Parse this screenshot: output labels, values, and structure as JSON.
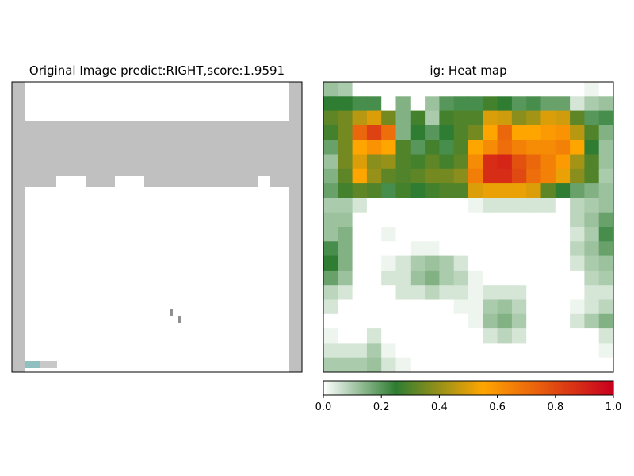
{
  "chart_data": [
    {
      "type": "image",
      "title": "Original Image predict:RIGHT,score:1.9591",
      "cols": 20,
      "rows": 20,
      "note_colors": {
        "background": "#ffffff",
        "wall": "#c0c0c0",
        "brick_gap": "#ffffff",
        "paddle_left": "#8fbfbf",
        "paddle_right": "#c8c8c8",
        "ball": "#8f8f8f"
      }
    },
    {
      "type": "heatmap",
      "title": "ig: Heat map",
      "cols": 20,
      "rows": 20,
      "colormap": [
        "#ffffff",
        "#2e7d32",
        "#ffa500",
        "#c8001e"
      ],
      "colormap_stops": [
        0,
        0.25,
        0.55,
        1.0
      ],
      "values": [
        [
          0.12,
          0.1,
          0.0,
          0.0,
          0.0,
          0.0,
          0.0,
          0.0,
          0.0,
          0.0,
          0.0,
          0.0,
          0.0,
          0.0,
          0.0,
          0.0,
          0.0,
          0.0,
          0.02,
          0.0
        ],
        [
          0.25,
          0.25,
          0.22,
          0.22,
          0.0,
          0.15,
          0.0,
          0.12,
          0.2,
          0.22,
          0.22,
          0.28,
          0.25,
          0.2,
          0.22,
          0.18,
          0.18,
          0.05,
          0.1,
          0.12
        ],
        [
          0.32,
          0.35,
          0.45,
          0.5,
          0.35,
          0.15,
          0.28,
          0.1,
          0.28,
          0.3,
          0.3,
          0.5,
          0.48,
          0.38,
          0.42,
          0.5,
          0.48,
          0.32,
          0.2,
          0.22
        ],
        [
          0.28,
          0.35,
          0.72,
          0.82,
          0.7,
          0.15,
          0.25,
          0.2,
          0.25,
          0.3,
          0.35,
          0.55,
          0.72,
          0.55,
          0.55,
          0.58,
          0.6,
          0.45,
          0.3,
          0.15
        ],
        [
          0.18,
          0.35,
          0.55,
          0.6,
          0.55,
          0.3,
          0.2,
          0.28,
          0.22,
          0.3,
          0.55,
          0.62,
          0.7,
          0.65,
          0.62,
          0.62,
          0.65,
          0.55,
          0.25,
          0.12
        ],
        [
          0.12,
          0.35,
          0.5,
          0.38,
          0.4,
          0.3,
          0.28,
          0.32,
          0.28,
          0.32,
          0.62,
          0.88,
          0.9,
          0.78,
          0.72,
          0.65,
          0.58,
          0.42,
          0.3,
          0.12
        ],
        [
          0.15,
          0.32,
          0.55,
          0.4,
          0.32,
          0.3,
          0.32,
          0.35,
          0.35,
          0.38,
          0.66,
          0.88,
          0.88,
          0.8,
          0.7,
          0.65,
          0.52,
          0.38,
          0.3,
          0.1
        ],
        [
          0.18,
          0.28,
          0.32,
          0.3,
          0.22,
          0.28,
          0.25,
          0.28,
          0.3,
          0.3,
          0.5,
          0.52,
          0.52,
          0.52,
          0.5,
          0.32,
          0.25,
          0.18,
          0.15,
          0.12
        ],
        [
          0.1,
          0.1,
          0.05,
          0.0,
          0.0,
          0.0,
          0.0,
          0.0,
          0.0,
          0.0,
          0.02,
          0.05,
          0.05,
          0.05,
          0.05,
          0.05,
          0.0,
          0.08,
          0.1,
          0.12
        ],
        [
          0.12,
          0.12,
          0.0,
          0.0,
          0.0,
          0.0,
          0.0,
          0.0,
          0.0,
          0.0,
          0.0,
          0.0,
          0.0,
          0.0,
          0.0,
          0.0,
          0.0,
          0.08,
          0.12,
          0.18
        ],
        [
          0.12,
          0.15,
          0.0,
          0.0,
          0.02,
          0.0,
          0.0,
          0.0,
          0.0,
          0.0,
          0.0,
          0.0,
          0.0,
          0.0,
          0.0,
          0.0,
          0.0,
          0.05,
          0.1,
          0.22
        ],
        [
          0.22,
          0.15,
          0.0,
          0.0,
          0.0,
          0.0,
          0.02,
          0.02,
          0.0,
          0.0,
          0.0,
          0.0,
          0.0,
          0.0,
          0.0,
          0.0,
          0.0,
          0.08,
          0.12,
          0.18
        ],
        [
          0.25,
          0.15,
          0.0,
          0.0,
          0.02,
          0.05,
          0.1,
          0.12,
          0.1,
          0.05,
          0.0,
          0.0,
          0.0,
          0.0,
          0.0,
          0.0,
          0.0,
          0.05,
          0.1,
          0.12
        ],
        [
          0.18,
          0.12,
          0.0,
          0.0,
          0.05,
          0.05,
          0.12,
          0.15,
          0.1,
          0.08,
          0.02,
          0.0,
          0.0,
          0.0,
          0.0,
          0.0,
          0.0,
          0.0,
          0.08,
          0.1
        ],
        [
          0.08,
          0.05,
          0.0,
          0.0,
          0.0,
          0.05,
          0.05,
          0.08,
          0.05,
          0.05,
          0.02,
          0.05,
          0.05,
          0.05,
          0.0,
          0.0,
          0.0,
          0.0,
          0.05,
          0.05
        ],
        [
          0.05,
          0.0,
          0.0,
          0.0,
          0.0,
          0.0,
          0.0,
          0.0,
          0.0,
          0.02,
          0.02,
          0.1,
          0.12,
          0.08,
          0.0,
          0.0,
          0.0,
          0.02,
          0.05,
          0.08
        ],
        [
          0.0,
          0.0,
          0.0,
          0.0,
          0.0,
          0.0,
          0.0,
          0.0,
          0.0,
          0.0,
          0.02,
          0.12,
          0.15,
          0.1,
          0.0,
          0.0,
          0.0,
          0.05,
          0.1,
          0.15
        ],
        [
          0.02,
          0.0,
          0.0,
          0.05,
          0.0,
          0.0,
          0.0,
          0.0,
          0.0,
          0.0,
          0.0,
          0.05,
          0.08,
          0.05,
          0.0,
          0.0,
          0.0,
          0.0,
          0.0,
          0.05
        ],
        [
          0.05,
          0.05,
          0.05,
          0.1,
          0.02,
          0.0,
          0.0,
          0.0,
          0.0,
          0.0,
          0.0,
          0.0,
          0.0,
          0.0,
          0.0,
          0.0,
          0.0,
          0.0,
          0.0,
          0.02
        ],
        [
          0.1,
          0.1,
          0.1,
          0.12,
          0.05,
          0.02,
          0.0,
          0.0,
          0.0,
          0.0,
          0.0,
          0.0,
          0.0,
          0.0,
          0.0,
          0.0,
          0.0,
          0.0,
          0.0,
          0.0
        ]
      ]
    },
    {
      "type": "colorbar",
      "range": [
        0.0,
        1.0
      ],
      "ticks": [
        "0.0",
        "0.2",
        "0.4",
        "0.6",
        "0.8",
        "1.0"
      ],
      "tick_values": [
        0.0,
        0.2,
        0.4,
        0.6,
        0.8,
        1.0
      ]
    }
  ]
}
